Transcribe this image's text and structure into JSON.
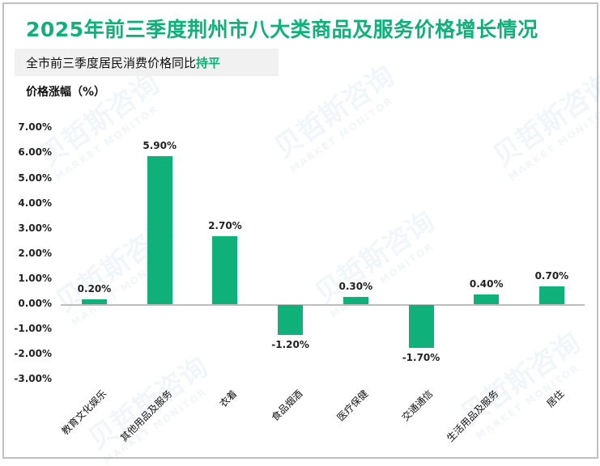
{
  "title": "2025年前三季度荆州市八大类商品及服务价格增长情况",
  "subtitle": {
    "prefix": "全市前三季度居民消费价格同比",
    "highlight": "持平"
  },
  "ylabel": "价格涨幅（%）",
  "watermark": {
    "cn": "贝哲斯咨询",
    "en": "MARKET MONITOR"
  },
  "colors": {
    "accent": "#10b07b",
    "axis": "#bdbdbd",
    "border": "#c0c0c0",
    "subtitle_bg": "#f1f1f1"
  },
  "y_ticks": [
    "7.00%",
    "6.00%",
    "5.00%",
    "4.00%",
    "3.00%",
    "2.00%",
    "1.00%",
    "0.00%",
    "-1.00%",
    "-2.00%",
    "-3.00%"
  ],
  "value_labels": [
    "0.20%",
    "5.90%",
    "2.70%",
    "-1.20%",
    "0.30%",
    "-1.70%",
    "0.40%",
    "0.70%"
  ],
  "categories": [
    "教育文化娱乐",
    "其他用品及服务",
    "衣着",
    "食品烟酒",
    "医疗保健",
    "交通通信",
    "生活用品及服务",
    "居住"
  ],
  "chart_data": {
    "type": "bar",
    "title": "2025年前三季度荆州市八大类商品及服务价格增长情况",
    "subtitle": "全市前三季度居民消费价格同比持平",
    "xlabel": "",
    "ylabel": "价格涨幅（%）",
    "categories": [
      "教育文化娱乐",
      "其他用品及服务",
      "衣着",
      "食品烟酒",
      "医疗保健",
      "交通通信",
      "生活用品及服务",
      "居住"
    ],
    "values": [
      0.2,
      5.9,
      2.7,
      -1.2,
      0.3,
      -1.7,
      0.4,
      0.7
    ],
    "unit": "%",
    "ylim": [
      -3.0,
      7.0
    ],
    "ytick_step": 1.0,
    "grid": false,
    "legend": "none",
    "data_labels": true
  }
}
